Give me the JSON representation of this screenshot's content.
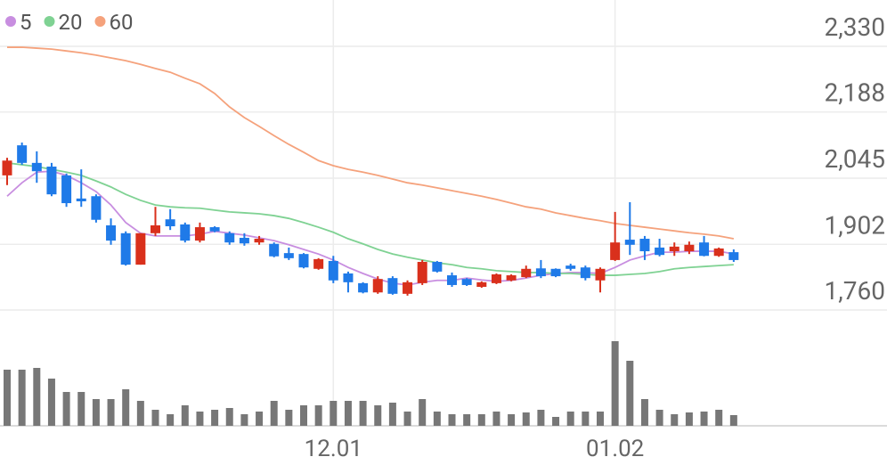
{
  "chart_data": {
    "type": "candlestick",
    "categories": [
      null,
      null,
      null,
      null,
      null,
      null,
      null,
      null,
      null,
      null,
      null,
      null,
      null,
      null,
      null,
      null,
      null,
      null,
      null,
      null,
      null,
      null,
      "12.01",
      null,
      null,
      null,
      null,
      null,
      null,
      null,
      null,
      null,
      null,
      null,
      null,
      null,
      null,
      null,
      null,
      null,
      null,
      "01.02",
      null,
      null,
      null,
      null,
      null,
      null,
      null,
      null
    ],
    "open": [
      2051,
      2116,
      2078,
      2070,
      2051,
      2001,
      2006,
      1943,
      1926,
      1858,
      1926,
      1956,
      1945,
      1910,
      1939,
      1926,
      1916,
      1906,
      1903,
      1883,
      1881,
      1849,
      1866,
      1839,
      1818,
      1798,
      1829,
      1795,
      1818,
      1864,
      1835,
      1827,
      1810,
      1818,
      1824,
      1831,
      1850,
      1849,
      1856,
      1852,
      1824,
      1868,
      1912,
      1914,
      1895,
      1887,
      1887,
      1906,
      1877,
      1885
    ],
    "high": [
      2089,
      2122,
      2103,
      2078,
      2055,
      2064,
      2010,
      1958,
      1930,
      1926,
      1983,
      1978,
      1949,
      1949,
      1941,
      1930,
      1926,
      1920,
      1906,
      1895,
      1883,
      1872,
      1877,
      1843,
      1820,
      1833,
      1833,
      1824,
      1868,
      1866,
      1841,
      1829,
      1822,
      1839,
      1837,
      1856,
      1868,
      1850,
      1860,
      1856,
      1852,
      1972,
      1993,
      1920,
      1914,
      1906,
      1908,
      1920,
      1895,
      1891
    ],
    "low": [
      2030,
      2074,
      2035,
      2006,
      1983,
      1983,
      1949,
      1901,
      1856,
      1858,
      1920,
      1933,
      1906,
      1906,
      1928,
      1901,
      1899,
      1901,
      1874,
      1868,
      1850,
      1847,
      1818,
      1798,
      1796,
      1795,
      1793,
      1791,
      1814,
      1841,
      1810,
      1812,
      1808,
      1816,
      1822,
      1829,
      1829,
      1831,
      1845,
      1824,
      1798,
      1866,
      1879,
      1868,
      1876,
      1877,
      1881,
      1876,
      1875,
      1864
    ],
    "close": [
      2083,
      2078,
      2060,
      2010,
      1991,
      1995,
      1955,
      1910,
      1858,
      1926,
      1943,
      1941,
      1910,
      1939,
      1930,
      1906,
      1904,
      1914,
      1876,
      1872,
      1852,
      1870,
      1824,
      1820,
      1798,
      1827,
      1795,
      1820,
      1864,
      1843,
      1814,
      1814,
      1820,
      1837,
      1835,
      1849,
      1833,
      1833,
      1849,
      1829,
      1849,
      1906,
      1901,
      1887,
      1879,
      1897,
      1901,
      1877,
      1893,
      1868
    ],
    "up_color": "#d9301c",
    "down_color": "#1f7ae8",
    "series": [
      {
        "name": "5",
        "color": "#c88ee0",
        "values": [
          2006,
          2035,
          2058,
          2060,
          2051,
          2035,
          2016,
          1987,
          1949,
          1926,
          1920,
          1920,
          1920,
          1924,
          1930,
          1926,
          1922,
          1916,
          1910,
          1901,
          1891,
          1881,
          1868,
          1852,
          1839,
          1827,
          1818,
          1814,
          1820,
          1824,
          1824,
          1829,
          1825,
          1822,
          1824,
          1829,
          1835,
          1839,
          1841,
          1841,
          1839,
          1852,
          1868,
          1877,
          1885,
          1885,
          1887,
          1887,
          1887,
          1881
        ]
      },
      {
        "name": "20",
        "color": "#7fd293",
        "values": [
          2078,
          2074,
          2070,
          2064,
          2058,
          2051,
          2039,
          2026,
          2010,
          1997,
          1987,
          1983,
          1981,
          1980,
          1976,
          1972,
          1970,
          1968,
          1964,
          1958,
          1949,
          1939,
          1928,
          1914,
          1903,
          1891,
          1881,
          1874,
          1868,
          1862,
          1858,
          1852,
          1849,
          1845,
          1843,
          1841,
          1841,
          1839,
          1839,
          1837,
          1835,
          1835,
          1837,
          1839,
          1843,
          1849,
          1852,
          1854,
          1856,
          1858
        ]
      },
      {
        "name": "60",
        "color": "#f5a27c",
        "values": [
          2328,
          2328,
          2326,
          2324,
          2320,
          2316,
          2311,
          2305,
          2299,
          2291,
          2282,
          2274,
          2261,
          2249,
          2228,
          2199,
          2176,
          2157,
          2137,
          2118,
          2101,
          2083,
          2072,
          2064,
          2058,
          2051,
          2043,
          2035,
          2030,
          2024,
          2018,
          2012,
          2006,
          1999,
          1991,
          1983,
          1978,
          1970,
          1964,
          1958,
          1953,
          1947,
          1943,
          1939,
          1935,
          1931,
          1927,
          1924,
          1920,
          1914
        ]
      }
    ],
    "volume": {
      "color": "#777777",
      "values": [
        63,
        63,
        65,
        53,
        38,
        38,
        30,
        30,
        41,
        28,
        18,
        13,
        23,
        16,
        18,
        20,
        13,
        16,
        28,
        18,
        23,
        23,
        28,
        28,
        28,
        23,
        26,
        16,
        30,
        16,
        13,
        13,
        13,
        16,
        13,
        15,
        18,
        10,
        16,
        16,
        16,
        95,
        73,
        30,
        18,
        13,
        15,
        16,
        18,
        12
      ]
    },
    "ylim": [
      1760,
      2330
    ],
    "yticks": [
      {
        "value": 1760,
        "label": "1,760"
      },
      {
        "value": 1902,
        "label": "1,902"
      },
      {
        "value": 2045,
        "label": "2,045"
      },
      {
        "value": 2188,
        "label": "2,188"
      },
      {
        "value": 2330,
        "label": "2,330"
      }
    ],
    "grid": true
  }
}
